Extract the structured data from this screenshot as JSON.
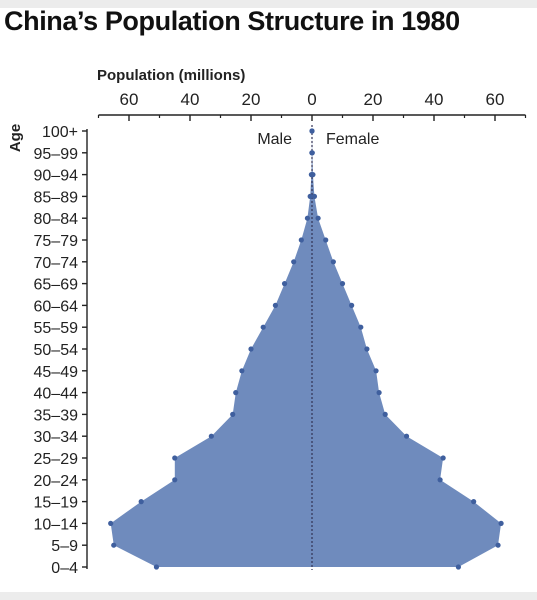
{
  "chart_data": {
    "type": "area",
    "subtype": "population-pyramid",
    "title": "China’s Population Structure in 1980",
    "xlabel": "Population (millions)",
    "ylabel": "Age",
    "x_ticks": [
      "60",
      "40",
      "20",
      "0",
      "20",
      "40",
      "60"
    ],
    "xlim": [
      -70,
      70
    ],
    "legend": {
      "left": "Male",
      "right": "Female",
      "placement": "top-center"
    },
    "colors": {
      "fill": "#6f8bbd",
      "points": "#3f5f9e",
      "axis": "#222222",
      "center_line": "#333355"
    },
    "grid": false,
    "categories": [
      "0–4",
      "5–9",
      "10–14",
      "15–19",
      "20–24",
      "25–29",
      "30–34",
      "35–39",
      "40–44",
      "45–49",
      "50–54",
      "55–59",
      "60–64",
      "65–69",
      "70–74",
      "75–79",
      "80–84",
      "85–89",
      "90–94",
      "95–99",
      "100+"
    ],
    "series": [
      {
        "name": "Male",
        "values": [
          51,
          65,
          66,
          56,
          45,
          45,
          33,
          26,
          25,
          23,
          20,
          16,
          12,
          9,
          6,
          3.5,
          1.5,
          0.6,
          0.2,
          0.05,
          0
        ]
      },
      {
        "name": "Female",
        "values": [
          48,
          61,
          62,
          53,
          42,
          43,
          31,
          24,
          22,
          21,
          18,
          16,
          13,
          10,
          7,
          4.5,
          2,
          0.8,
          0.3,
          0.1,
          0
        ]
      }
    ]
  }
}
